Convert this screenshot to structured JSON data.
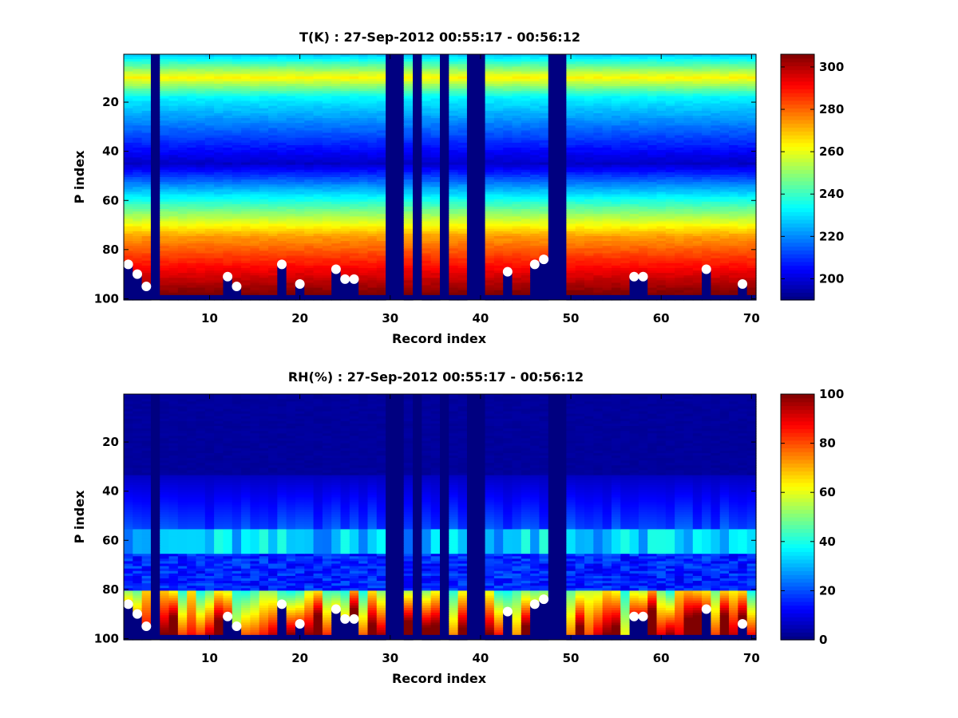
{
  "figure": {
    "background": "#ffffff"
  },
  "chart_data": [
    {
      "type": "heatmap",
      "title": "T(K) : 27-Sep-2012 00:55:17 - 00:56:12",
      "xlabel": "Record index",
      "ylabel": "P index",
      "xlim": [
        0.5,
        70.5
      ],
      "ylim": [
        0.5,
        100.5
      ],
      "y_direction": "reversed",
      "x_ticks": [
        10,
        20,
        30,
        40,
        50,
        60,
        70
      ],
      "y_ticks": [
        20,
        40,
        60,
        80,
        100
      ],
      "colormap": "jet",
      "clim": [
        190,
        306
      ],
      "colorbar_ticks": [
        200,
        220,
        240,
        260,
        280,
        300
      ],
      "dropout_records": [
        4,
        30,
        31,
        33,
        36,
        39,
        40,
        48,
        49
      ],
      "surface_profile": {
        "records": [
          1,
          2,
          3,
          12,
          13,
          18,
          20,
          24,
          25,
          26,
          43,
          46,
          47,
          57,
          58,
          65,
          69
        ],
        "p_index": [
          86,
          90,
          95,
          91,
          95,
          86,
          94,
          88,
          92,
          92,
          89,
          86,
          84,
          91,
          91,
          88,
          94
        ]
      }
    },
    {
      "type": "heatmap",
      "title": "RH(%) : 27-Sep-2012 00:55:17 - 00:56:12",
      "xlabel": "Record index",
      "ylabel": "P index",
      "xlim": [
        0.5,
        70.5
      ],
      "ylim": [
        0.5,
        100.5
      ],
      "y_direction": "reversed",
      "x_ticks": [
        10,
        20,
        30,
        40,
        50,
        60,
        70
      ],
      "y_ticks": [
        20,
        40,
        60,
        80,
        100
      ],
      "colormap": "jet",
      "clim": [
        0,
        100
      ],
      "colorbar_ticks": [
        0,
        20,
        40,
        60,
        80,
        100
      ],
      "dropout_records": [
        4,
        30,
        31,
        33,
        36,
        39,
        40,
        48,
        49
      ],
      "surface_profile": {
        "records": [
          1,
          2,
          3,
          12,
          13,
          18,
          20,
          24,
          25,
          26,
          43,
          46,
          47,
          57,
          58,
          65,
          69
        ],
        "p_index": [
          86,
          90,
          95,
          91,
          95,
          86,
          94,
          88,
          92,
          92,
          89,
          86,
          84,
          91,
          91,
          88,
          94
        ]
      }
    }
  ]
}
